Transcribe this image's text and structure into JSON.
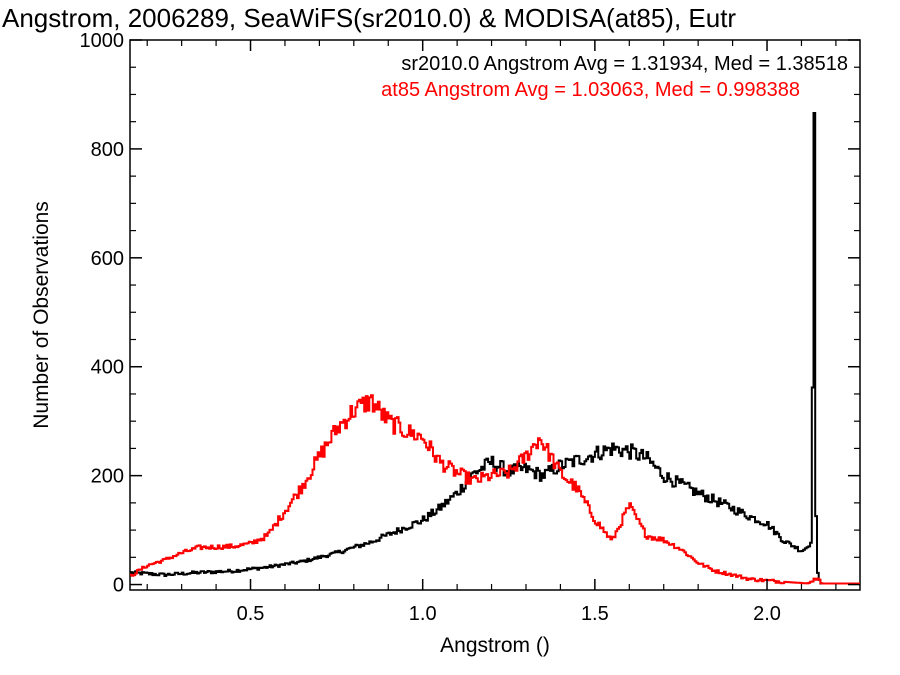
{
  "chart_data": {
    "type": "line",
    "title": "Angstrom, 2006289, SeaWiFS(sr2010.0) & MODISA(at85), Eutr",
    "xlabel": "Angstrom ()",
    "ylabel": "Number of Observations",
    "xlim": [
      0.15,
      2.27
    ],
    "ylim": [
      -10,
      1000
    ],
    "xticks": [
      0.5,
      1.0,
      1.5,
      2.0
    ],
    "xtick_labels": [
      "0.5",
      "1.0",
      "1.5",
      "2.0"
    ],
    "yticks": [
      0,
      200,
      400,
      600,
      800,
      1000
    ],
    "ytick_labels": [
      "0",
      "200",
      "400",
      "600",
      "800",
      "1000"
    ],
    "grid": false,
    "legend_position": "top-right",
    "series": [
      {
        "name": "sr2010.0",
        "label": "sr2010.0 Angstrom Avg = 1.31934, Med = 1.38518",
        "color": "#000000",
        "points": [
          [
            0.15,
            22
          ],
          [
            0.25,
            18
          ],
          [
            0.35,
            22
          ],
          [
            0.45,
            25
          ],
          [
            0.55,
            32
          ],
          [
            0.65,
            42
          ],
          [
            0.75,
            58
          ],
          [
            0.85,
            78
          ],
          [
            0.95,
            105
          ],
          [
            1.0,
            118
          ],
          [
            1.05,
            140
          ],
          [
            1.1,
            168
          ],
          [
            1.15,
            205
          ],
          [
            1.2,
            225
          ],
          [
            1.25,
            208
          ],
          [
            1.3,
            212
          ],
          [
            1.35,
            200
          ],
          [
            1.4,
            218
          ],
          [
            1.45,
            228
          ],
          [
            1.5,
            240
          ],
          [
            1.55,
            250
          ],
          [
            1.6,
            245
          ],
          [
            1.65,
            232
          ],
          [
            1.7,
            200
          ],
          [
            1.8,
            168
          ],
          [
            1.9,
            140
          ],
          [
            1.95,
            125
          ],
          [
            2.0,
            112
          ],
          [
            2.05,
            80
          ],
          [
            2.08,
            70
          ],
          [
            2.1,
            62
          ],
          [
            2.12,
            70
          ],
          [
            2.13,
            85
          ],
          [
            2.138,
            918
          ],
          [
            2.143,
            45
          ],
          [
            2.15,
            8
          ],
          [
            2.16,
            0
          ]
        ]
      },
      {
        "name": "at85",
        "label": "at85 Angstrom Avg = 1.03063, Med = 0.998388",
        "color": "#ff0000",
        "points": [
          [
            0.15,
            15
          ],
          [
            0.2,
            35
          ],
          [
            0.25,
            45
          ],
          [
            0.3,
            58
          ],
          [
            0.35,
            68
          ],
          [
            0.45,
            70
          ],
          [
            0.5,
            75
          ],
          [
            0.55,
            90
          ],
          [
            0.6,
            135
          ],
          [
            0.65,
            180
          ],
          [
            0.7,
            235
          ],
          [
            0.75,
            285
          ],
          [
            0.8,
            320
          ],
          [
            0.85,
            338
          ],
          [
            0.9,
            300
          ],
          [
            0.95,
            282
          ],
          [
            1.0,
            270
          ],
          [
            1.05,
            225
          ],
          [
            1.1,
            205
          ],
          [
            1.15,
            190
          ],
          [
            1.2,
            200
          ],
          [
            1.25,
            205
          ],
          [
            1.3,
            235
          ],
          [
            1.34,
            270
          ],
          [
            1.4,
            205
          ],
          [
            1.45,
            175
          ],
          [
            1.5,
            120
          ],
          [
            1.55,
            80
          ],
          [
            1.6,
            145
          ],
          [
            1.65,
            90
          ],
          [
            1.7,
            82
          ],
          [
            1.75,
            65
          ],
          [
            1.8,
            40
          ],
          [
            1.85,
            25
          ],
          [
            1.9,
            18
          ],
          [
            1.95,
            10
          ],
          [
            2.05,
            5
          ],
          [
            2.12,
            2
          ],
          [
            2.15,
            15
          ],
          [
            2.16,
            2
          ],
          [
            2.27,
            2
          ]
        ]
      }
    ]
  }
}
